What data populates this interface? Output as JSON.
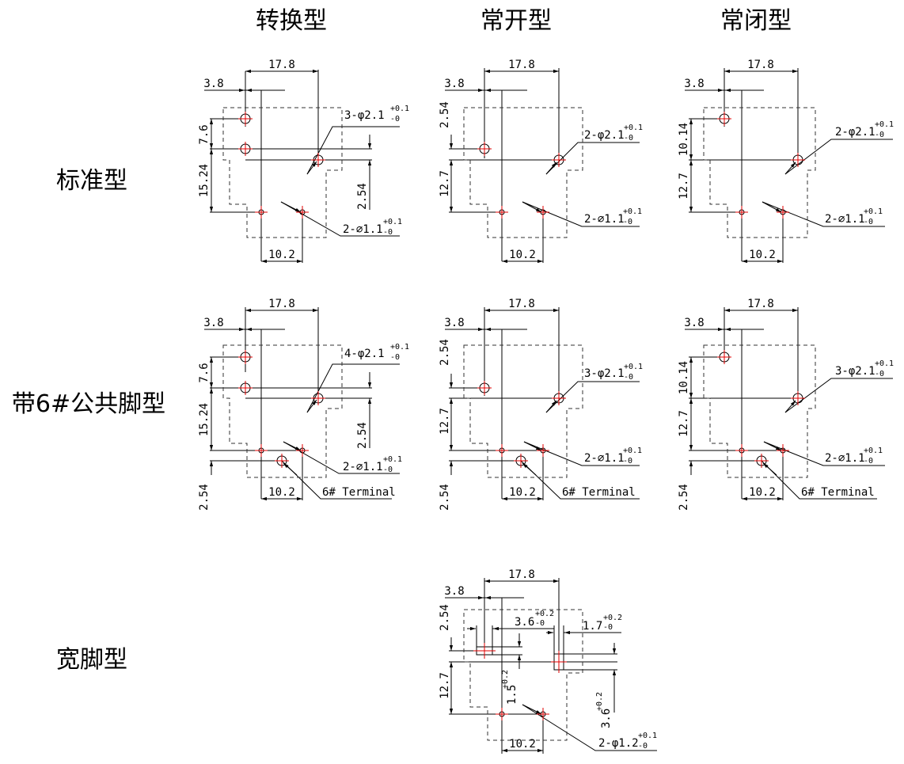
{
  "columns": [
    "转换型",
    "常开型",
    "常闭型"
  ],
  "rows": [
    "标准型",
    "带6#公共脚型",
    "宽脚型"
  ],
  "dims": {
    "d17_8": "17.8",
    "d3_8": "3.8",
    "d10_2": "10.2",
    "d7_6": "7.6",
    "d15_24": "15.24",
    "d2_54": "2.54",
    "d12_7": "12.7",
    "d10_14": "10.14",
    "terminal6": "6# Terminal"
  },
  "callouts": {
    "c3_21": "3-φ2.1",
    "c4_21": "4-φ2.1",
    "c2_21": "2-φ2.1",
    "c2_11": "2-⌀1.1",
    "c2_12": "2-φ1.2",
    "tol01": "+0.1",
    "tol00": "-0",
    "tol02": "+0.2"
  },
  "wide": {
    "d3_6": "3.6",
    "d1_7": "1.7",
    "d1_5": "1.5",
    "d3_6v": "3.6"
  },
  "colors": {
    "line": "#000000",
    "mark": "#e00000",
    "dash": "#333333"
  }
}
